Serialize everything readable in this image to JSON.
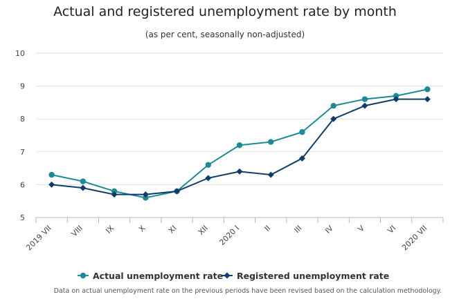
{
  "chart_data": {
    "type": "line",
    "title": "Actual and registered unemployment rate by month",
    "subtitle": "(as per cent, seasonally non-adjusted)",
    "categories": [
      "2019 VII",
      "VIII",
      "IX",
      "X",
      "XI",
      "XII",
      "2020 I",
      "II",
      "III",
      "IV",
      "V",
      "VI",
      "2020 VII"
    ],
    "ylim": [
      5,
      10
    ],
    "yticks": [
      5,
      6,
      7,
      8,
      9,
      10
    ],
    "grid": true,
    "legend_position": "bottom",
    "series": [
      {
        "name": "Actual unemployment rate",
        "color": "#1a8a96",
        "marker": "circle",
        "values": [
          6.3,
          6.1,
          5.8,
          5.6,
          5.8,
          6.6,
          7.2,
          7.3,
          7.6,
          8.4,
          8.6,
          8.7,
          8.9
        ]
      },
      {
        "name": "Registered unemployment rate",
        "color": "#0e3d6b",
        "marker": "diamond",
        "values": [
          6.0,
          5.9,
          5.7,
          5.7,
          5.8,
          6.2,
          6.4,
          6.3,
          6.8,
          8.0,
          8.4,
          8.6,
          8.6
        ]
      }
    ],
    "note": "Data on actual unemployment rate on the previous periods have been revised based on the calculation methodology."
  }
}
